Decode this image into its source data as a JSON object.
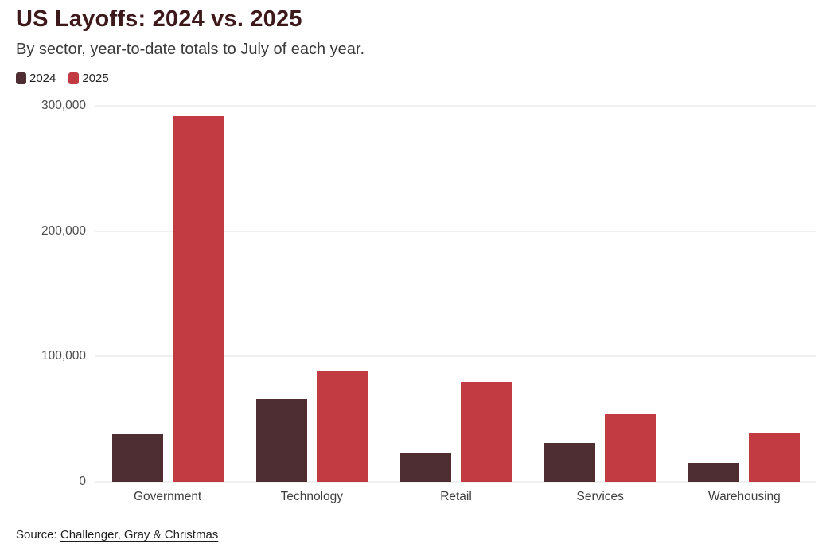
{
  "header": {
    "title": "US Layoffs: 2024 vs. 2025",
    "subtitle": "By sector, year-to-date totals to July of each year."
  },
  "footer": {
    "source_prefix": "Source:",
    "source_link": "Challenger, Gray & Christmas"
  },
  "chart_data": {
    "type": "bar",
    "title": "US Layoffs: 2024 vs. 2025",
    "subtitle": "By sector, year-to-date totals to July of each year.",
    "categories": [
      "Government",
      "Technology",
      "Retail",
      "Services",
      "Warehousing"
    ],
    "series": [
      {
        "name": "2024",
        "color": "#4e2e32",
        "values": [
          38000,
          66000,
          23000,
          31000,
          15000
        ]
      },
      {
        "name": "2025",
        "color": "#c23b43",
        "values": [
          292000,
          89000,
          80000,
          54000,
          39000
        ]
      }
    ],
    "ylim": [
      0,
      300000
    ],
    "yticks": [
      {
        "value": 0,
        "label": "0"
      },
      {
        "value": 100000,
        "label": "100,000"
      },
      {
        "value": 200000,
        "label": "200,000"
      },
      {
        "value": 300000,
        "label": "300,000"
      }
    ],
    "grid": true,
    "legend_position": "top",
    "xlabel": "",
    "ylabel": ""
  }
}
